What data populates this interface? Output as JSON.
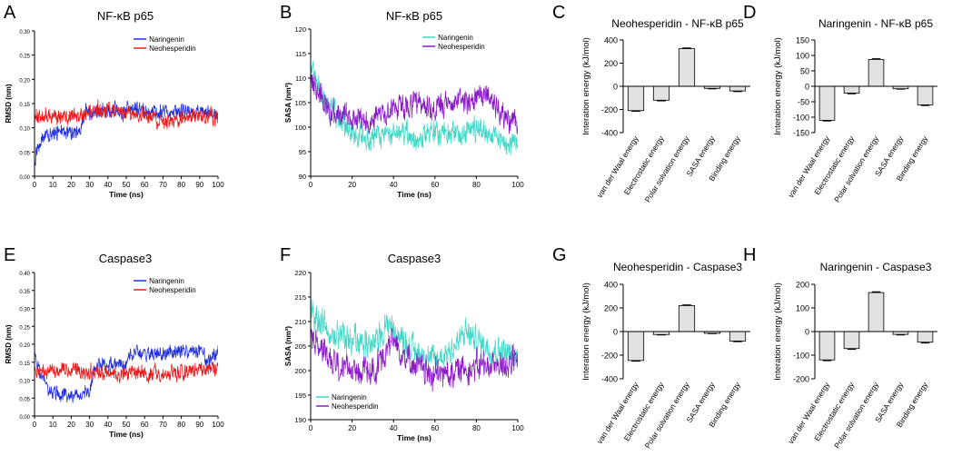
{
  "colors": {
    "naringenin_rmsd": "#1f2fe0",
    "neohesperidin_rmsd": "#f01a1a",
    "naringenin_sasa": "#3fd8c6",
    "neohesperidin_sasa": "#8a18c8",
    "bar_fill": "#e2e2e2",
    "axis": "#000000"
  },
  "chart_data": [
    {
      "id": "A",
      "panel_letter": "A",
      "type": "line",
      "kind": "rmsd",
      "title": "NF-κB p65",
      "xlabel": "Time (ns)",
      "ylabel": "RMSD (nm)",
      "xlim": [
        0,
        100
      ],
      "ylim": [
        0,
        0.3
      ],
      "xticks": [
        "0",
        "10",
        "20",
        "30",
        "40",
        "50",
        "60",
        "70",
        "80",
        "90",
        "100"
      ],
      "yticks": [
        "0.00",
        "0.05",
        "0.10",
        "0.15",
        "0.20",
        "0.25",
        "0.30"
      ],
      "legend": [
        "Naringenin",
        "Neohesperidin"
      ],
      "series": [
        {
          "name": "Naringenin",
          "color": "#1f2fe0",
          "noise": 0.012,
          "values": [
            [
              0,
              0.03
            ],
            [
              2,
              0.06
            ],
            [
              5,
              0.08
            ],
            [
              10,
              0.085
            ],
            [
              15,
              0.09
            ],
            [
              20,
              0.09
            ],
            [
              25,
              0.095
            ],
            [
              27,
              0.12
            ],
            [
              28,
              0.135
            ],
            [
              40,
              0.135
            ],
            [
              60,
              0.135
            ],
            [
              80,
              0.135
            ],
            [
              100,
              0.13
            ]
          ]
        },
        {
          "name": "Neohesperidin",
          "color": "#f01a1a",
          "noise": 0.012,
          "values": [
            [
              0,
              0.12
            ],
            [
              10,
              0.125
            ],
            [
              20,
              0.125
            ],
            [
              27,
              0.125
            ],
            [
              30,
              0.135
            ],
            [
              40,
              0.135
            ],
            [
              50,
              0.13
            ],
            [
              60,
              0.125
            ],
            [
              70,
              0.115
            ],
            [
              75,
              0.11
            ],
            [
              80,
              0.12
            ],
            [
              90,
              0.125
            ],
            [
              100,
              0.12
            ]
          ]
        }
      ]
    },
    {
      "id": "B",
      "panel_letter": "B",
      "type": "line",
      "kind": "sasa",
      "title": "NF-κB p65",
      "xlabel": "Time (ns)",
      "ylabel": "SASA (nm²)",
      "xlim": [
        0,
        100
      ],
      "ylim": [
        90,
        120
      ],
      "xticks": [
        "0",
        "20",
        "40",
        "60",
        "80",
        "100"
      ],
      "yticks": [
        "90",
        "95",
        "100",
        "105",
        "110",
        "115",
        "120"
      ],
      "legend": [
        "Naringenin",
        "Neohesperidin"
      ],
      "series": [
        {
          "name": "Naringenin",
          "color": "#3fd8c6",
          "noise": 1.8,
          "values": [
            [
              0,
              113
            ],
            [
              5,
              107
            ],
            [
              10,
              104
            ],
            [
              15,
              101
            ],
            [
              20,
              99
            ],
            [
              30,
              97.5
            ],
            [
              40,
              99
            ],
            [
              50,
              98
            ],
            [
              60,
              99
            ],
            [
              70,
              98.5
            ],
            [
              80,
              100
            ],
            [
              90,
              98
            ],
            [
              100,
              96.5
            ]
          ]
        },
        {
          "name": "Neohesperidin",
          "color": "#8a18c8",
          "noise": 1.8,
          "values": [
            [
              0,
              110
            ],
            [
              5,
              106
            ],
            [
              10,
              103
            ],
            [
              20,
              102
            ],
            [
              30,
              101
            ],
            [
              40,
              104
            ],
            [
              50,
              104.5
            ],
            [
              60,
              103.5
            ],
            [
              70,
              105
            ],
            [
              80,
              106
            ],
            [
              85,
              107
            ],
            [
              90,
              104
            ],
            [
              100,
              100
            ]
          ]
        }
      ]
    },
    {
      "id": "C",
      "panel_letter": "C",
      "type": "bar",
      "title": "Neohesperidin - NF-κB p65",
      "ylabel": "Interation energy (kJ/mol)",
      "ylim": [
        -400,
        400
      ],
      "yticks": [
        "-400",
        "-200",
        "0",
        "200",
        "400"
      ],
      "categories": [
        "van der Waal energy",
        "Electrostatic energy",
        "Polar solvation energy",
        "SASA energy",
        "Binding energy"
      ],
      "values": [
        -210,
        -120,
        325,
        -18,
        -40
      ],
      "errors": [
        5,
        5,
        5,
        3,
        5
      ]
    },
    {
      "id": "D",
      "panel_letter": "D",
      "type": "bar",
      "title": "Naringenin - NF-κB p65",
      "ylabel": "Interation energy (kJ/mol)",
      "ylim": [
        -150,
        150
      ],
      "yticks": [
        "-150",
        "-100",
        "-50",
        "0",
        "50",
        "100",
        "150"
      ],
      "categories": [
        "van der Waal energy",
        "Electrostatic energy",
        "Polar solvation energy",
        "SASA energy",
        "Binding energy"
      ],
      "values": [
        -110,
        -22,
        87,
        -8,
        -60
      ],
      "errors": [
        2,
        2,
        2,
        1,
        2
      ]
    },
    {
      "id": "E",
      "panel_letter": "E",
      "type": "line",
      "kind": "rmsd",
      "title": "Caspase3",
      "xlabel": "Time (ns)",
      "ylabel": "RMSD (nm)",
      "xlim": [
        0,
        100
      ],
      "ylim": [
        0,
        0.4
      ],
      "xticks": [
        "0",
        "10",
        "20",
        "30",
        "40",
        "50",
        "60",
        "70",
        "80",
        "90",
        "100"
      ],
      "yticks": [
        "0.00",
        "0.05",
        "0.10",
        "0.15",
        "0.20",
        "0.25",
        "0.30",
        "0.35",
        "0.40"
      ],
      "legend": [
        "Naringenin",
        "Neohesperidin"
      ],
      "series": [
        {
          "name": "Naringenin",
          "color": "#1f2fe0",
          "noise": 0.014,
          "values": [
            [
              0,
              0.18
            ],
            [
              3,
              0.11
            ],
            [
              8,
              0.07
            ],
            [
              15,
              0.06
            ],
            [
              25,
              0.06
            ],
            [
              30,
              0.07
            ],
            [
              33,
              0.14
            ],
            [
              40,
              0.145
            ],
            [
              48,
              0.15
            ],
            [
              50,
              0.13
            ],
            [
              52,
              0.175
            ],
            [
              60,
              0.175
            ],
            [
              70,
              0.17
            ],
            [
              80,
              0.18
            ],
            [
              90,
              0.18
            ],
            [
              95,
              0.15
            ],
            [
              100,
              0.18
            ]
          ]
        },
        {
          "name": "Neohesperidin",
          "color": "#f01a1a",
          "noise": 0.016,
          "values": [
            [
              0,
              0.12
            ],
            [
              10,
              0.125
            ],
            [
              20,
              0.13
            ],
            [
              30,
              0.12
            ],
            [
              40,
              0.12
            ],
            [
              50,
              0.115
            ],
            [
              60,
              0.12
            ],
            [
              70,
              0.12
            ],
            [
              80,
              0.12
            ],
            [
              90,
              0.13
            ],
            [
              100,
              0.135
            ]
          ]
        }
      ]
    },
    {
      "id": "F",
      "panel_letter": "F",
      "type": "line",
      "kind": "sasa",
      "title": "Caspase3",
      "xlabel": "Time (ns)",
      "ylabel": "SASA (nm²)",
      "xlim": [
        0,
        100
      ],
      "ylim": [
        190,
        220
      ],
      "xticks": [
        "0",
        "20",
        "40",
        "60",
        "80",
        "100"
      ],
      "yticks": [
        "190",
        "195",
        "200",
        "205",
        "210",
        "215",
        "220"
      ],
      "legend": [
        "Naringenin",
        "Neohesperidin"
      ],
      "series": [
        {
          "name": "Naringenin",
          "color": "#3fd8c6",
          "noise": 2.2,
          "values": [
            [
              0,
              212
            ],
            [
              10,
              208
            ],
            [
              20,
              206
            ],
            [
              30,
              205
            ],
            [
              38,
              210
            ],
            [
              40,
              208
            ],
            [
              50,
              204
            ],
            [
              60,
              202
            ],
            [
              70,
              205
            ],
            [
              75,
              208
            ],
            [
              80,
              206
            ],
            [
              90,
              204
            ],
            [
              100,
              203
            ]
          ]
        },
        {
          "name": "Neohesperidin",
          "color": "#8a18c8",
          "noise": 2.2,
          "values": [
            [
              0,
              207
            ],
            [
              10,
              202
            ],
            [
              20,
              200
            ],
            [
              30,
              200
            ],
            [
              38,
              205
            ],
            [
              40,
              206
            ],
            [
              50,
              201
            ],
            [
              60,
              199
            ],
            [
              70,
              200
            ],
            [
              80,
              201
            ],
            [
              90,
              201
            ],
            [
              100,
              202
            ]
          ]
        }
      ]
    },
    {
      "id": "G",
      "panel_letter": "G",
      "type": "bar",
      "title": "Neohesperidin - Caspase3",
      "ylabel": "Interation energy (kJ/mol)",
      "ylim": [
        -400,
        400
      ],
      "yticks": [
        "-400",
        "-200",
        "0",
        "200",
        "400"
      ],
      "categories": [
        "van der Waal energy",
        "Electrostatic energy",
        "Polar solvation energy",
        "SASA energy",
        "Binding energy"
      ],
      "values": [
        -245,
        -25,
        220,
        -15,
        -80
      ],
      "errors": [
        5,
        3,
        5,
        2,
        5
      ]
    },
    {
      "id": "H",
      "panel_letter": "H",
      "type": "bar",
      "title": "Naringenin - Caspase3",
      "ylabel": "Interation energy (kJ/mol)",
      "ylim": [
        -200,
        200
      ],
      "yticks": [
        "-200",
        "-100",
        "0",
        "100",
        "200"
      ],
      "categories": [
        "van der Waal energy",
        "Electrostatic energy",
        "Polar solvation energy",
        "SASA energy",
        "Binding energy"
      ],
      "values": [
        -120,
        -72,
        165,
        -12,
        -45
      ],
      "errors": [
        3,
        3,
        3,
        2,
        3
      ]
    }
  ]
}
